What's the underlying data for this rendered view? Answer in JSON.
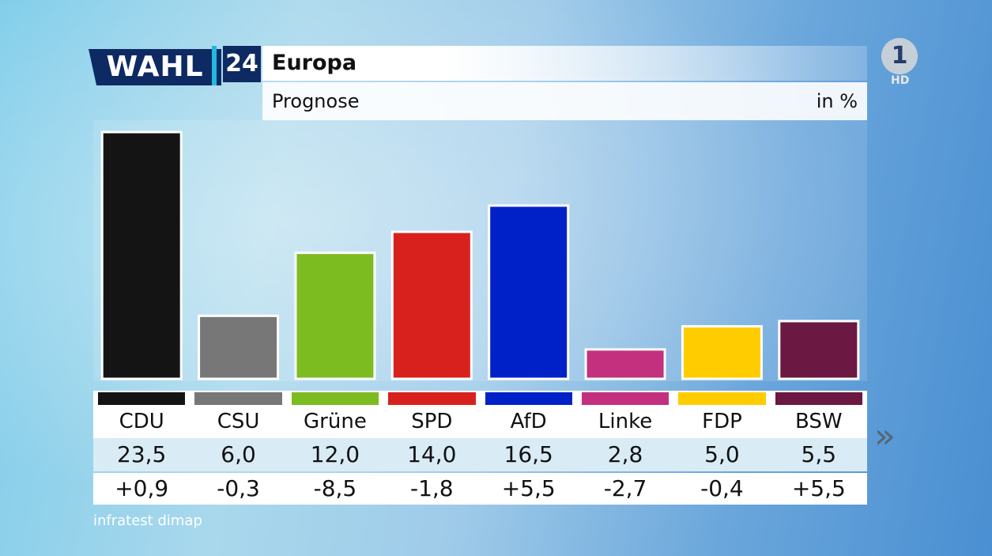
{
  "header": {
    "logo_text": "WAHL",
    "logo_number": "24",
    "title": "Europa",
    "subtitle": "Prognose",
    "unit": "in %"
  },
  "broadcaster": {
    "logo": "1",
    "quality": "HD"
  },
  "source": "infratest dimap",
  "next_icon": "»",
  "chart_data": {
    "type": "bar",
    "title": "Europa",
    "subtitle": "Prognose",
    "ylabel": "in %",
    "ylim": [
      0,
      25
    ],
    "categories": [
      "CDU",
      "CSU",
      "Grüne",
      "SPD",
      "AfD",
      "Linke",
      "FDP",
      "BSW"
    ],
    "values": [
      23.5,
      6.0,
      12.0,
      14.0,
      16.5,
      2.8,
      5.0,
      5.5
    ],
    "value_labels": [
      "23,5",
      "6,0",
      "12,0",
      "14,0",
      "16,5",
      "2,8",
      "5,0",
      "5,5"
    ],
    "changes": [
      "+0,9",
      "-0,3",
      "-8,5",
      "-1,8",
      "+5,5",
      "-2,7",
      "-0,4",
      "+5,5"
    ],
    "colors": [
      "#141414",
      "#777777",
      "#7cbc21",
      "#d8211d",
      "#0021c8",
      "#c2307e",
      "#ffcc00",
      "#6b1843"
    ]
  }
}
